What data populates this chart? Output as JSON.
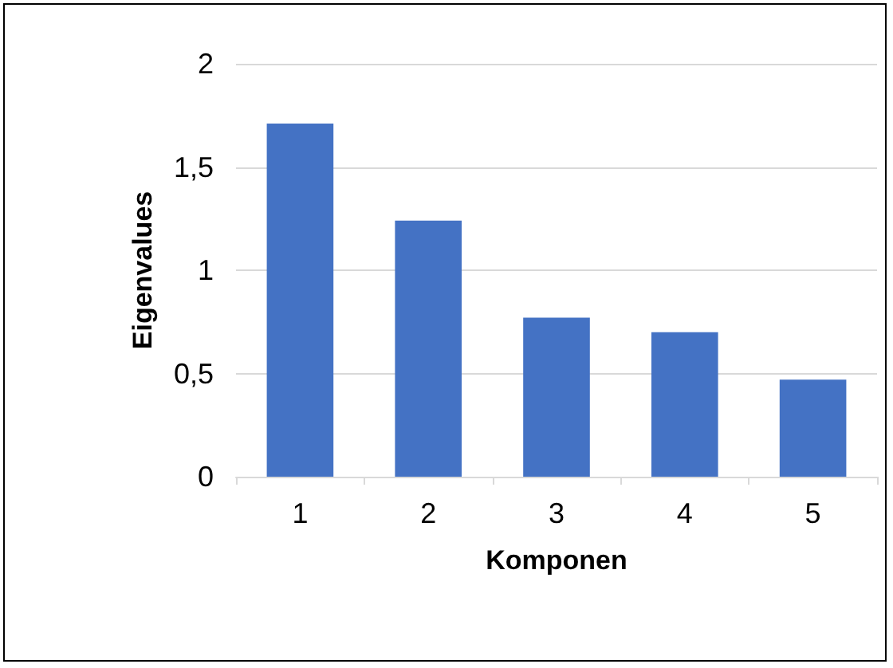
{
  "chart_data": {
    "type": "bar",
    "xlabel": "Komponen",
    "ylabel": "Eigenvalues",
    "categories": [
      "1",
      "2",
      "3",
      "4",
      "5"
    ],
    "values": [
      1.71,
      1.24,
      0.77,
      0.7,
      0.47
    ],
    "color": "#4472c4",
    "ylim": [
      0,
      2
    ],
    "yticks": [
      0,
      {
        "value": 0.5,
        "label": "0,5"
      },
      1,
      {
        "value": 1.5,
        "label": "1,5"
      },
      2
    ],
    "grid": "y"
  }
}
